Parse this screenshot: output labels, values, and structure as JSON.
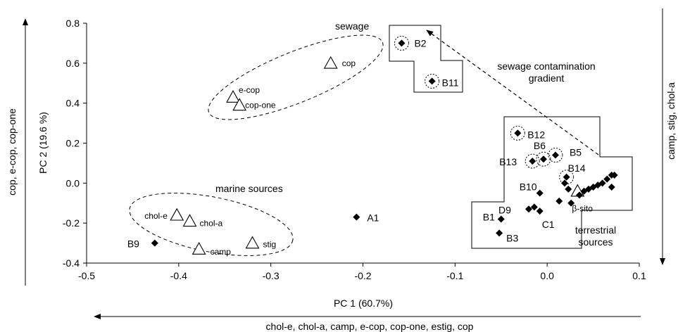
{
  "chart_data": {
    "type": "scatter",
    "xlabel": "PC 1 (60.7%)",
    "ylabel": "PC 2 (19.6 %)",
    "xlim": [
      -0.5,
      0.1
    ],
    "ylim": [
      -0.4,
      0.8
    ],
    "x_ticks": [
      -0.5,
      -0.4,
      -0.3,
      -0.2,
      -0.1,
      0,
      0.1
    ],
    "x_tick_labels": [
      "-0.5",
      "-0.4",
      "-0.3",
      "-0.2",
      "-0.1",
      "0.0",
      "0.1"
    ],
    "y_ticks": [
      -0.4,
      -0.2,
      0,
      0.2,
      0.4,
      0.6,
      0.8
    ],
    "y_tick_labels": [
      "-0.4",
      "-0.2",
      "0.0",
      "0.2",
      "0.4",
      "0.6",
      "0.8"
    ],
    "grid": false,
    "side_labels": {
      "left": "cop, e-cop, cop-one",
      "right": "camp, stig, chol-a",
      "bottom": "chol-e, chol-a, camp, e-cop, cop-one, estig, cop"
    },
    "loadings": [
      {
        "label": "cop",
        "x": -0.235,
        "y": 0.6
      },
      {
        "label": "e-cop",
        "x": -0.341,
        "y": 0.43
      },
      {
        "label": "cop-one",
        "x": -0.334,
        "y": 0.39
      },
      {
        "label": "chol-e",
        "x": -0.402,
        "y": -0.16
      },
      {
        "label": "chol-a",
        "x": -0.388,
        "y": -0.19
      },
      {
        "label": "camp",
        "x": -0.378,
        "y": -0.33
      },
      {
        "label": "stig",
        "x": -0.32,
        "y": -0.3
      },
      {
        "label": "β-sito",
        "x": 0.033,
        "y": -0.04
      }
    ],
    "samples": [
      {
        "label": "B2",
        "x": -0.158,
        "y": 0.7,
        "circled": true
      },
      {
        "label": "B11",
        "x": -0.125,
        "y": 0.51,
        "circled": true
      },
      {
        "label": "B12",
        "x": -0.032,
        "y": 0.25,
        "circled": true
      },
      {
        "label": "B6",
        "x": -0.004,
        "y": 0.12,
        "circled": true
      },
      {
        "label": "B13",
        "x": -0.016,
        "y": 0.11,
        "circled": true
      },
      {
        "label": "B5",
        "x": 0.009,
        "y": 0.14,
        "circled": true
      },
      {
        "label": "B14",
        "x": 0.021,
        "y": 0.03,
        "circled": true
      },
      {
        "label": "B10",
        "x": -0.008,
        "y": -0.05,
        "circled": false
      },
      {
        "label": "D9",
        "x": -0.02,
        "y": -0.13,
        "circled": false
      },
      {
        "label": "C1",
        "x": -0.008,
        "y": -0.14,
        "circled": false
      },
      {
        "label": "B1",
        "x": -0.05,
        "y": -0.18,
        "circled": false
      },
      {
        "label": "B3",
        "x": -0.052,
        "y": -0.25,
        "circled": false
      },
      {
        "label": "A1",
        "x": -0.207,
        "y": -0.17,
        "circled": false
      },
      {
        "label": "B9",
        "x": -0.426,
        "y": -0.3,
        "circled": false
      },
      {
        "label": "",
        "x": -0.014,
        "y": -0.12,
        "circled": false
      },
      {
        "label": "",
        "x": 0.019,
        "y": 0.0,
        "circled": false
      },
      {
        "label": "",
        "x": 0.023,
        "y": -0.03,
        "circled": false
      },
      {
        "label": "",
        "x": 0.013,
        "y": -0.09,
        "circled": false
      },
      {
        "label": "",
        "x": 0.026,
        "y": -0.1,
        "circled": false
      },
      {
        "label": "",
        "x": 0.035,
        "y": -0.06,
        "circled": false
      },
      {
        "label": "",
        "x": 0.04,
        "y": -0.04,
        "circled": false
      },
      {
        "label": "",
        "x": 0.045,
        "y": -0.03,
        "circled": false
      },
      {
        "label": "",
        "x": 0.05,
        "y": -0.02,
        "circled": false
      },
      {
        "label": "",
        "x": 0.055,
        "y": -0.01,
        "circled": false
      },
      {
        "label": "",
        "x": 0.06,
        "y": 0.0,
        "circled": false
      },
      {
        "label": "",
        "x": 0.065,
        "y": 0.02,
        "circled": false
      },
      {
        "label": "",
        "x": 0.07,
        "y": 0.04,
        "circled": false
      },
      {
        "label": "",
        "x": 0.073,
        "y": 0.04,
        "circled": false
      },
      {
        "label": "",
        "x": 0.07,
        "y": -0.02,
        "circled": false
      }
    ],
    "annotations": {
      "sewage": "sewage",
      "gradient_line1": "sewage contamination",
      "gradient_line2": "gradient",
      "marine": "marine sources",
      "terrestrial_line1": "terrestrial",
      "terrestrial_line2": "sources"
    }
  }
}
